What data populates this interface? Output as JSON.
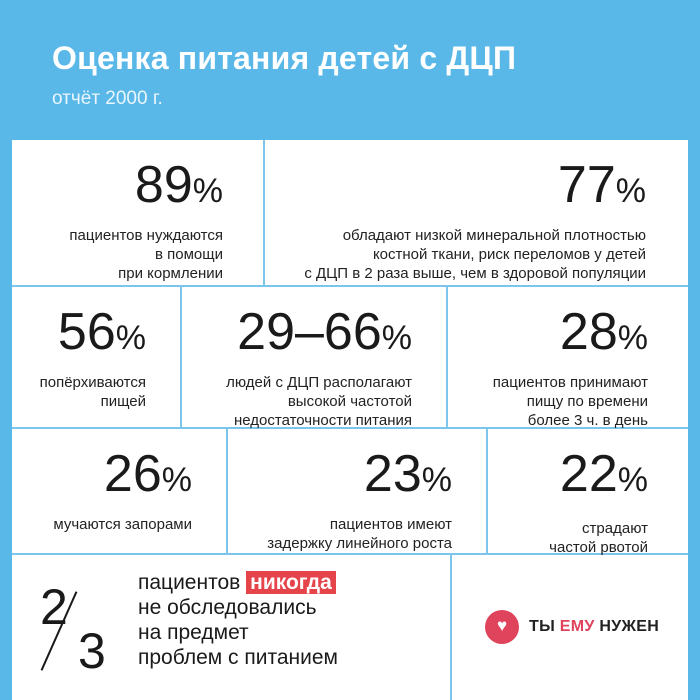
{
  "header": {
    "title": "Оценка питания детей с ДЦП",
    "subtitle": "отчёт 2000 г."
  },
  "stats": [
    {
      "value": "89",
      "sign": "%",
      "lines": [
        "пациентов нуждаются",
        "в помощи",
        "при кормлении"
      ]
    },
    {
      "value": "77",
      "sign": "%",
      "lines": [
        "обладают низкой минеральной плотностью",
        "костной ткани, риск переломов у детей",
        "с ДЦП в 2 раза выше, чем в здоровой популяции"
      ]
    },
    {
      "value": "56",
      "sign": "%",
      "lines": [
        "попёрхиваются",
        "пищей"
      ]
    },
    {
      "value": "29–66",
      "sign": "%",
      "lines": [
        "людей с ДЦП располагают",
        "высокой частотой",
        "недостаточности питания"
      ]
    },
    {
      "value": "28",
      "sign": "%",
      "lines": [
        "пациентов принимают",
        "пищу по времени",
        "более 3 ч. в день"
      ]
    },
    {
      "value": "26",
      "sign": "%",
      "lines": [
        "мучаются запорами"
      ]
    },
    {
      "value": "23",
      "sign": "%",
      "lines": [
        "пациентов имеют",
        "задержку линейного роста"
      ]
    },
    {
      "value": "22",
      "sign": "%",
      "lines": [
        "страдают",
        "частой рвотой"
      ]
    }
  ],
  "fraction": {
    "numerator": "2",
    "denominator": "3",
    "line1_prefix": "пациентов",
    "line1_highlight": "никогда",
    "line2": "не обследовались",
    "line3": "на предмет",
    "line4": "проблем с питанием"
  },
  "logo": {
    "heart": "♥",
    "part1": "ТЫ",
    "accent": "ЕМУ",
    "part2": "НУЖЕН"
  },
  "colors": {
    "background": "#5ab8e8",
    "divider": "#7cc5ec",
    "accent": "#e5454a"
  }
}
